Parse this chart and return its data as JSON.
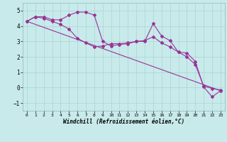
{
  "title": "",
  "xlabel": "Windchill (Refroidissement éolien,°C)",
  "ylabel": "",
  "xlim": [
    -0.5,
    23.5
  ],
  "ylim": [
    -1.5,
    5.5
  ],
  "yticks": [
    -1,
    0,
    1,
    2,
    3,
    4,
    5
  ],
  "xticks": [
    0,
    1,
    2,
    3,
    4,
    5,
    6,
    7,
    8,
    9,
    10,
    11,
    12,
    13,
    14,
    15,
    16,
    17,
    18,
    19,
    20,
    21,
    22,
    23
  ],
  "bg_color": "#c8eaea",
  "line_color": "#993399",
  "grid_color": "#aad4d4",
  "line1_x": [
    0,
    1,
    2,
    3,
    4,
    5,
    6,
    7,
    8,
    9,
    10,
    11,
    12,
    13,
    14,
    15,
    16,
    17,
    18,
    19,
    20,
    21,
    22,
    23
  ],
  "line1_y": [
    4.3,
    4.6,
    4.6,
    4.4,
    4.4,
    4.7,
    4.9,
    4.9,
    4.7,
    3.0,
    2.7,
    2.8,
    2.85,
    3.0,
    3.0,
    4.15,
    3.35,
    3.05,
    2.3,
    2.25,
    1.7,
    0.05,
    -0.6,
    -0.2
  ],
  "line2_x": [
    0,
    1,
    2,
    3,
    4,
    5,
    6,
    7,
    8,
    9,
    10,
    11,
    12,
    13,
    14,
    15,
    16,
    17,
    18,
    19,
    20,
    21,
    22,
    23
  ],
  "line2_y": [
    4.3,
    4.6,
    4.5,
    4.3,
    4.1,
    3.8,
    3.2,
    2.9,
    2.65,
    2.7,
    2.85,
    2.85,
    2.9,
    3.0,
    3.05,
    3.3,
    2.9,
    2.65,
    2.3,
    2.0,
    1.5,
    0.1,
    -0.05,
    -0.15
  ],
  "line3_x": [
    0,
    23
  ],
  "line3_y": [
    4.3,
    -0.2
  ],
  "marker": "D",
  "markersize": 2.0,
  "linewidth": 0.8,
  "tick_fontsize_x": 4.5,
  "tick_fontsize_y": 5.5,
  "xlabel_fontsize": 5.5
}
